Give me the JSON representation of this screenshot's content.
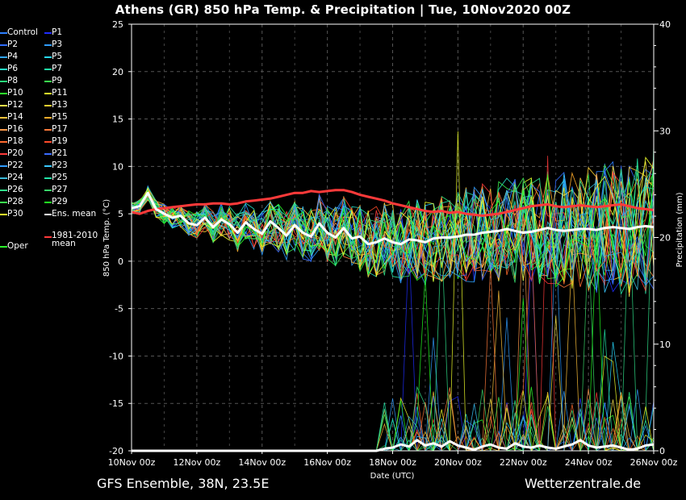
{
  "header": {
    "title": "Athens  (GR)  850 hPa Temp. & Precipitation | Tue, 10Nov2020 00Z"
  },
  "footer": {
    "left": "GFS Ensemble, 38N, 23.5E",
    "right": "Wetterzentrale.de"
  },
  "legend": [
    {
      "label": "Control",
      "color": "#2c7fff"
    },
    {
      "label": "P1",
      "color": "#1f2dff"
    },
    {
      "label": "P2",
      "color": "#2f6cff"
    },
    {
      "label": "P3",
      "color": "#2f9cff"
    },
    {
      "label": "P4",
      "color": "#2fa6ff"
    },
    {
      "label": "P5",
      "color": "#27d9ff"
    },
    {
      "label": "P6",
      "color": "#26e0c8"
    },
    {
      "label": "P7",
      "color": "#22e6a8"
    },
    {
      "label": "P8",
      "color": "#27e07a"
    },
    {
      "label": "P9",
      "color": "#3af04e"
    },
    {
      "label": "P10",
      "color": "#2bff2b"
    },
    {
      "label": "P11",
      "color": "#f0ff2a"
    },
    {
      "label": "P12",
      "color": "#ffe84a"
    },
    {
      "label": "P13",
      "color": "#ffd030"
    },
    {
      "label": "P14",
      "color": "#ffc23a"
    },
    {
      "label": "P15",
      "color": "#ffac2a"
    },
    {
      "label": "P16",
      "color": "#ff9a4a"
    },
    {
      "label": "P17",
      "color": "#ff7a3a"
    },
    {
      "label": "P18",
      "color": "#ff6a2e"
    },
    {
      "label": "P19",
      "color": "#ff4a2a"
    },
    {
      "label": "P20",
      "color": "#ff3a3a"
    },
    {
      "label": "P21",
      "color": "#3a6cff"
    },
    {
      "label": "P22",
      "color": "#2f9cff"
    },
    {
      "label": "P23",
      "color": "#3ac8ff"
    },
    {
      "label": "P24",
      "color": "#39b8d8"
    },
    {
      "label": "P25",
      "color": "#22e6a8"
    },
    {
      "label": "P26",
      "color": "#2fe08a"
    },
    {
      "label": "P27",
      "color": "#39d86a"
    },
    {
      "label": "P28",
      "color": "#3af04e"
    },
    {
      "label": "P29",
      "color": "#22ff22"
    },
    {
      "label": "P30",
      "color": "#f0ff2a"
    },
    {
      "label": "Ens. mean",
      "color": "#ffffff"
    },
    {
      "label": "Oper",
      "color": "#2bff2b"
    },
    {
      "label": "1981-2010 mean",
      "color": "#ff3a3a"
    }
  ],
  "chart_data": {
    "type": "line",
    "title": "Athens  (GR)  850 hPa Temp. & Precipitation | Tue, 10Nov2020 00Z",
    "xlabel": "Date (UTC)",
    "ylabel": "850 hPa Temp. (°C)",
    "y2label": "Precipitation (mm)",
    "ylim": [
      -20,
      25
    ],
    "y2lim": [
      0,
      40
    ],
    "yticks": [
      -20,
      -15,
      -10,
      -5,
      0,
      5,
      10,
      15,
      20,
      25
    ],
    "y2ticks": [
      0,
      10,
      20,
      30,
      40
    ],
    "xticks": [
      "10Nov 00z",
      "12Nov 00z",
      "14Nov 00z",
      "16Nov 00z",
      "18Nov 00z",
      "20Nov 00z",
      "22Nov 00z",
      "24Nov 00z",
      "26Nov 00z"
    ],
    "grid": true,
    "x_days": [
      0,
      0.25,
      0.5,
      0.75,
      1,
      1.25,
      1.5,
      1.75,
      2,
      2.25,
      2.5,
      2.75,
      3,
      3.25,
      3.5,
      3.75,
      4,
      4.25,
      4.5,
      4.75,
      5,
      5.25,
      5.5,
      5.75,
      6,
      6.25,
      6.5,
      6.75,
      7,
      7.25,
      7.5,
      7.75,
      8,
      8.25,
      8.5,
      8.75,
      9,
      9.25,
      9.5,
      9.75,
      10,
      10.25,
      10.5,
      10.75,
      11,
      11.25,
      11.5,
      11.75,
      12,
      12.25,
      12.5,
      12.75,
      13,
      13.25,
      13.5,
      13.75,
      14,
      14.25,
      14.5,
      14.75,
      15,
      15.25,
      15.5,
      15.75,
      16
    ],
    "series": [
      {
        "name": "1981-2010 mean",
        "color": "#ff3a3a",
        "axis": "temp",
        "values": [
          5.2,
          5.0,
          5.3,
          5.5,
          5.6,
          5.7,
          5.8,
          5.9,
          6.0,
          6.0,
          6.1,
          6.1,
          6.0,
          6.1,
          6.3,
          6.4,
          6.5,
          6.6,
          6.8,
          7.0,
          7.2,
          7.2,
          7.4,
          7.3,
          7.4,
          7.5,
          7.5,
          7.3,
          7.0,
          6.8,
          6.6,
          6.4,
          6.1,
          5.9,
          5.7,
          5.5,
          5.3,
          5.2,
          5.3,
          5.1,
          5.2,
          5.0,
          4.9,
          4.8,
          4.9,
          5.0,
          5.2,
          5.4,
          5.6,
          5.8,
          5.9,
          6.0,
          5.8,
          5.7,
          5.8,
          5.9,
          5.8,
          5.7,
          5.8,
          5.9,
          6.0,
          5.8,
          5.6,
          5.5,
          5.4
        ]
      },
      {
        "name": "Ens. mean",
        "color": "#ffffff",
        "axis": "temp",
        "values": [
          5.6,
          5.8,
          7.2,
          5.5,
          5.0,
          4.6,
          4.8,
          4.0,
          3.8,
          4.6,
          3.6,
          4.4,
          3.9,
          3.0,
          4.1,
          3.4,
          2.9,
          4.2,
          3.5,
          2.7,
          3.8,
          3.0,
          2.6,
          4.0,
          3.0,
          2.5,
          3.5,
          2.4,
          2.6,
          1.8,
          2.0,
          2.4,
          2.0,
          1.8,
          2.3,
          2.2,
          2.0,
          2.4,
          2.5,
          2.5,
          2.6,
          2.8,
          2.8,
          3.0,
          3.1,
          3.2,
          3.4,
          3.2,
          3.0,
          3.1,
          3.3,
          3.5,
          3.3,
          3.2,
          3.3,
          3.4,
          3.4,
          3.3,
          3.5,
          3.6,
          3.5,
          3.4,
          3.6,
          3.7,
          3.6
        ]
      },
      {
        "name": "Ens. mean",
        "color": "#ffffff",
        "axis": "precip",
        "values": [
          0,
          0,
          0,
          0,
          0,
          0,
          0,
          0,
          0,
          0,
          0,
          0,
          0,
          0,
          0,
          0,
          0,
          0,
          0,
          0,
          0,
          0,
          0,
          0,
          0,
          0,
          0,
          0,
          0,
          0,
          0,
          0.2,
          0.3,
          0.6,
          0.4,
          1.0,
          0.5,
          0.7,
          0.4,
          0.9,
          0.5,
          0.3,
          0.1,
          0.4,
          0.6,
          0.3,
          0.2,
          0.7,
          0.4,
          0.3,
          0.5,
          0.3,
          0.2,
          0.4,
          0.6,
          1.0,
          0.5,
          0.3,
          0.4,
          0.5,
          0.3,
          0.1,
          0.2,
          0.5,
          0.6
        ]
      }
    ]
  }
}
